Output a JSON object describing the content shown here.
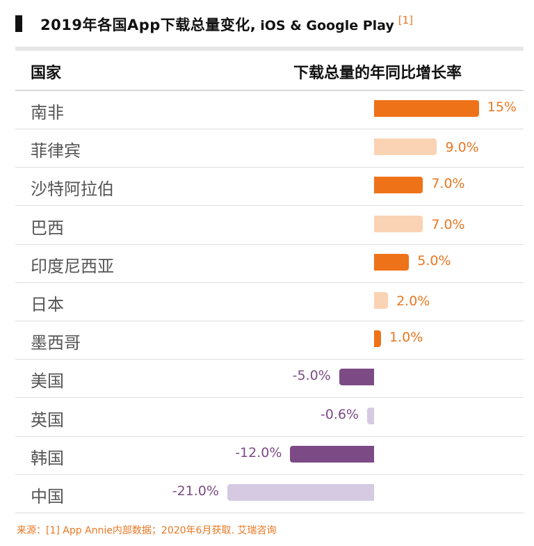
{
  "header": {
    "title": "2019年各国App下载总量变化,",
    "subtitle": "iOS & Google Play",
    "ref": "[1]",
    "col_country": "国家",
    "col_growth": "下载总量的年同比增长率"
  },
  "colors": {
    "positive_dark": "#ee7318",
    "positive_light": "#fad3b4",
    "negative_dark": "#7c4a85",
    "negative_light": "#d5cae2",
    "positive_label": "#e87722",
    "negative_label": "#7c4a85"
  },
  "chart_data": {
    "type": "bar",
    "orientation": "horizontal",
    "title": "2019年各国App下载总量变化, iOS & Google Play",
    "xlabel": "下载总量的年同比增长率",
    "ylabel": "国家",
    "unit": "%",
    "categories": [
      "南非",
      "菲律宾",
      "沙特阿拉伯",
      "巴西",
      "印度尼西亚",
      "日本",
      "墨西哥",
      "美国",
      "英国",
      "韩国",
      "中国"
    ],
    "values": [
      15,
      9.0,
      7.0,
      7.0,
      5.0,
      2.0,
      1.0,
      -5.0,
      -0.6,
      -12.0,
      -21.0
    ],
    "labels": [
      "15%",
      "9.0%",
      "7.0%",
      "7.0%",
      "5.0%",
      "2.0%",
      "1.0%",
      "-5.0%",
      "-0.6%",
      "-12.0%",
      "-21.0%"
    ],
    "shades": [
      "dark",
      "light",
      "dark",
      "light",
      "dark",
      "light",
      "dark",
      "dark",
      "light",
      "dark",
      "light"
    ]
  },
  "source": "来源：[1] App Annie内部数据；2020年6月获取. 艾瑞咨询"
}
